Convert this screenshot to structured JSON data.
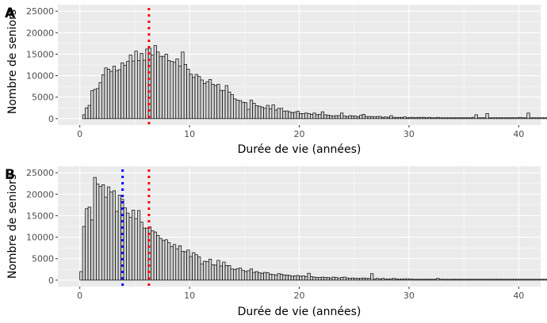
{
  "colors": {
    "panel_background": "#ebebeb",
    "gridline": "#ffffff",
    "bar_fill": "#d3d3d3",
    "bar_outline": "#000000",
    "vline_red": "#ff0000",
    "vline_blue": "#0000ff"
  },
  "chart_data": [
    {
      "type": "bar",
      "panel_tag": "A",
      "xlabel": "Durée de vie (années)",
      "ylabel": "Nombre de seniors",
      "xlim": [
        -2,
        42
      ],
      "ylim": [
        -1500,
        26500
      ],
      "xticks": [
        0,
        10,
        20,
        30,
        40
      ],
      "yticks": [
        0,
        5000,
        10000,
        15000,
        20000,
        25000
      ],
      "grid": true,
      "bin_start": 0.25,
      "bin_width": 0.25,
      "values": [
        900,
        2500,
        3100,
        6500,
        6800,
        7000,
        8400,
        10200,
        11800,
        11500,
        11000,
        12200,
        11200,
        11400,
        13000,
        12400,
        13300,
        14800,
        13400,
        15700,
        13500,
        15200,
        13600,
        16200,
        16400,
        14800,
        17000,
        15500,
        14500,
        14500,
        15000,
        13500,
        13300,
        13100,
        13900,
        12200,
        15500,
        12600,
        11500,
        10400,
        9600,
        10300,
        9800,
        9000,
        8200,
        8600,
        9100,
        8000,
        7700,
        8000,
        6600,
        6500,
        7700,
        6200,
        5600,
        4600,
        4300,
        4200,
        3800,
        3700,
        2200,
        4300,
        3600,
        3000,
        2900,
        2700,
        2400,
        3100,
        2300,
        3200,
        2000,
        2400,
        2400,
        1700,
        1800,
        1600,
        1400,
        1500,
        1700,
        1200,
        1200,
        1300,
        1200,
        1000,
        1300,
        900,
        1000,
        1600,
        900,
        800,
        700,
        600,
        700,
        700,
        1300,
        600,
        500,
        700,
        600,
        600,
        400,
        800,
        1000,
        500,
        500,
        500,
        400,
        500,
        500,
        300,
        400,
        300,
        700,
        300,
        300,
        300,
        300,
        400,
        200,
        300,
        300,
        200,
        300,
        300,
        300,
        200,
        300,
        200,
        200,
        300,
        200,
        200,
        200,
        200,
        200,
        200,
        200,
        200,
        200,
        200,
        200,
        200,
        300,
        900,
        200,
        200,
        200,
        1200,
        200,
        200,
        200,
        200,
        200,
        200,
        200,
        200,
        200,
        200,
        200,
        300,
        200,
        200,
        1300,
        200,
        200,
        200,
        200,
        200,
        200,
        200,
        200,
        200,
        200,
        200,
        200,
        200,
        200,
        200,
        200,
        200,
        200,
        200,
        200,
        200,
        200,
        200,
        200,
        200,
        200,
        200,
        200,
        200,
        200,
        200,
        200,
        200,
        200,
        200,
        200,
        200,
        200,
        200,
        200,
        200,
        200,
        200,
        200,
        200,
        200,
        200,
        200,
        200,
        200,
        200,
        200,
        200,
        200,
        200,
        200,
        200,
        200,
        200,
        200,
        200,
        200,
        200,
        200,
        200,
        200,
        200,
        200,
        200,
        200,
        200,
        200,
        200,
        200,
        200,
        200,
        200,
        200,
        200,
        200,
        200,
        200,
        200,
        200,
        200,
        200,
        200,
        200,
        200,
        200,
        200,
        200,
        200,
        200,
        200,
        200,
        200,
        200,
        200,
        200,
        200,
        200,
        200,
        200,
        200,
        200,
        200,
        200,
        200,
        200,
        200,
        200,
        200,
        200,
        200,
        200,
        200,
        200,
        200,
        200,
        200,
        200,
        200,
        200,
        200,
        200,
        200,
        200,
        200,
        200,
        200,
        200,
        200,
        200,
        200,
        200,
        200,
        200,
        200,
        200,
        200,
        200,
        200,
        200,
        200,
        200,
        200,
        200,
        200,
        200,
        200,
        200,
        200,
        200,
        200,
        200,
        200,
        200,
        200,
        200,
        200,
        200,
        200,
        200,
        200,
        200,
        200,
        200,
        200,
        200,
        200,
        200,
        200,
        200,
        200,
        200,
        200,
        200,
        200,
        200,
        200,
        200,
        200,
        200,
        200,
        200,
        200,
        200,
        200,
        200,
        200,
        200,
        200,
        200,
        200,
        200,
        200,
        200,
        200,
        200,
        200,
        200,
        200,
        200,
        200,
        200,
        200,
        200,
        200,
        200,
        200,
        200,
        200,
        200,
        200,
        200,
        200,
        200,
        200,
        200
      ],
      "vlines": [
        {
          "x": 6.3,
          "color": "#ff0000",
          "style": "dotted"
        }
      ]
    },
    {
      "type": "bar",
      "panel_tag": "B",
      "xlabel": "Durée de vie (années)",
      "ylabel": "Nombre de seniors",
      "xlim": [
        -2,
        42
      ],
      "ylim": [
        -1500,
        26500
      ],
      "xticks": [
        0,
        10,
        20,
        30,
        40
      ],
      "yticks": [
        0,
        5000,
        10000,
        15000,
        20000,
        25000
      ],
      "grid": true,
      "bin_start": 0,
      "bin_width": 0.25,
      "values": [
        2000,
        12500,
        16600,
        17000,
        14000,
        23900,
        22400,
        21800,
        22200,
        19300,
        21700,
        20500,
        20800,
        16000,
        19800,
        18800,
        16800,
        15600,
        14600,
        16300,
        14300,
        16200,
        13500,
        12100,
        12100,
        12400,
        11500,
        11200,
        10400,
        9700,
        9200,
        9400,
        8700,
        7800,
        8300,
        7300,
        8000,
        6700,
        6600,
        7000,
        5500,
        6400,
        5900,
        5400,
        3800,
        4400,
        4300,
        4900,
        3600,
        3500,
        4600,
        3300,
        4200,
        3400,
        3400,
        2600,
        2500,
        2700,
        2800,
        2300,
        2000,
        2200,
        2600,
        1800,
        2000,
        1700,
        1600,
        1800,
        1700,
        1400,
        1300,
        1200,
        1500,
        1400,
        1200,
        1200,
        1100,
        900,
        1000,
        1100,
        900,
        1000,
        800,
        1600,
        800,
        700,
        600,
        600,
        700,
        600,
        600,
        500,
        700,
        600,
        500,
        600,
        700,
        500,
        400,
        500,
        400,
        400,
        400,
        500,
        400,
        400,
        1500,
        300,
        400,
        300,
        400,
        300,
        300,
        300,
        400,
        300,
        200,
        300,
        300,
        300,
        300,
        200,
        200,
        200,
        200,
        200,
        200,
        200,
        200,
        200,
        400,
        200,
        200,
        200,
        200,
        200,
        200,
        200,
        200,
        200,
        200,
        200,
        200,
        200,
        200,
        200,
        200,
        200,
        200,
        200,
        200,
        200,
        200,
        200,
        200,
        200,
        200,
        200,
        200,
        200,
        200,
        200,
        200,
        200,
        200,
        200,
        200,
        200,
        200,
        200,
        200,
        200,
        200,
        200,
        200,
        200,
        200,
        200,
        200,
        200,
        200,
        200,
        200,
        200,
        200,
        200,
        200,
        200,
        200,
        200,
        200,
        200,
        200,
        200,
        200,
        200,
        200,
        200,
        200,
        200,
        200,
        200,
        200,
        200,
        200,
        200,
        200,
        200,
        200,
        200,
        200,
        200,
        200,
        200,
        200,
        200,
        200,
        200,
        200,
        200,
        200,
        200,
        200,
        200,
        200,
        200,
        200,
        200,
        200,
        200,
        200,
        200,
        200,
        200,
        200,
        200,
        200,
        200,
        200,
        200,
        200,
        200,
        200,
        200,
        200,
        200,
        200,
        200,
        200,
        200,
        200,
        200,
        200,
        200,
        200,
        200,
        200,
        200,
        200,
        200,
        200,
        200,
        200,
        200,
        200,
        200,
        200,
        200,
        200,
        200,
        200,
        200,
        200,
        200,
        200,
        200,
        200,
        200,
        200,
        200,
        200,
        200,
        200,
        200,
        200,
        200,
        200,
        200,
        200,
        200
      ],
      "vlines": [
        {
          "x": 3.9,
          "color": "#0000ff",
          "style": "dotted"
        },
        {
          "x": 6.3,
          "color": "#ff0000",
          "style": "dotted"
        }
      ]
    }
  ]
}
